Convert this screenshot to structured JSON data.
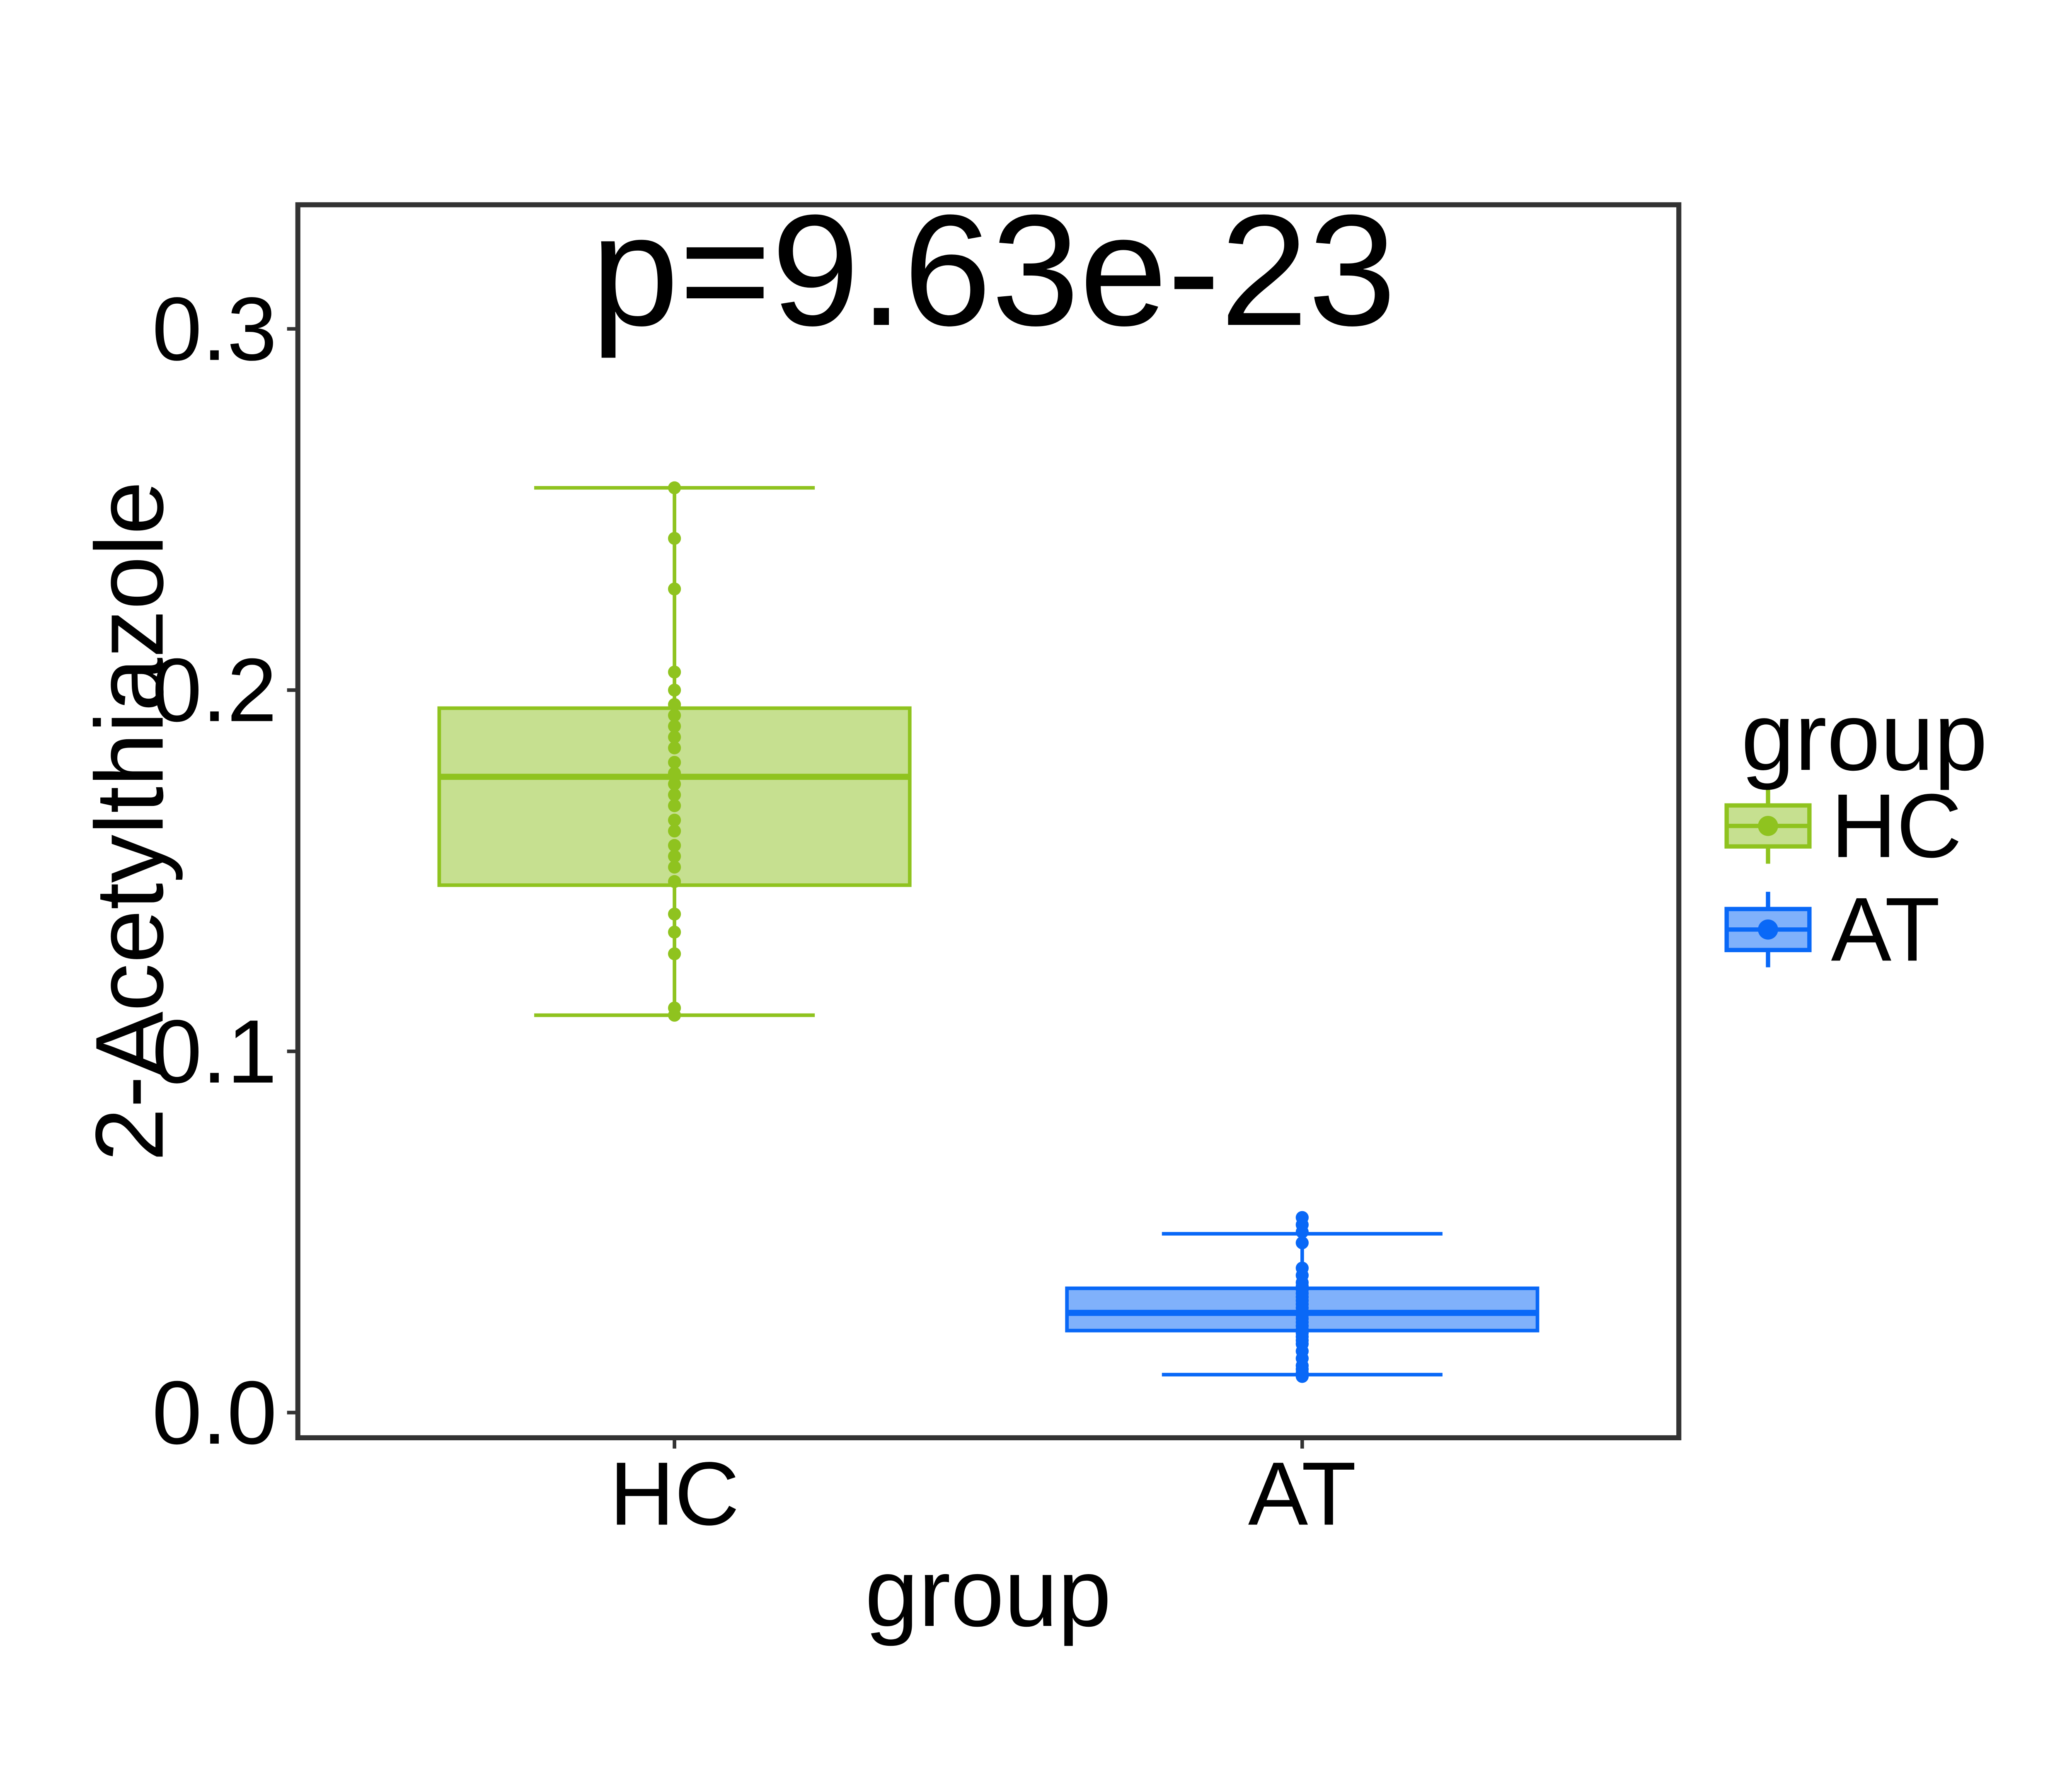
{
  "chart_data": {
    "type": "boxplot",
    "title": "p=9.63e-23",
    "xlabel": "group",
    "ylabel": "2-Acetylthiazole",
    "categories": [
      "HC",
      "AT"
    ],
    "ytick_labels": [
      "0.0",
      "0.1",
      "0.2",
      "0.3"
    ],
    "yticks": [
      0.0,
      0.1,
      0.2,
      0.3
    ],
    "ylim": [
      0.0,
      0.335
    ],
    "grid": "off",
    "legend": {
      "title": "group",
      "position": "right",
      "entries": [
        {
          "label": "HC",
          "stroke": "#8FC31F",
          "fill": "#C6E090"
        },
        {
          "label": "AT",
          "stroke": "#0968F7",
          "fill": "#80B1FB"
        }
      ]
    },
    "series": [
      {
        "name": "HC",
        "stroke": "#8FC31F",
        "fill": "#C6E090",
        "stats": {
          "whisker_low": 0.11,
          "q1": 0.146,
          "median": 0.176,
          "q3": 0.195,
          "whisker_high": 0.256
        },
        "points": [
          0.256,
          0.242,
          0.228,
          0.205,
          0.2,
          0.196,
          0.193,
          0.19,
          0.187,
          0.184,
          0.18,
          0.177,
          0.174,
          0.171,
          0.168,
          0.164,
          0.161,
          0.157,
          0.154,
          0.151,
          0.147,
          0.138,
          0.133,
          0.127,
          0.112,
          0.11
        ]
      },
      {
        "name": "AT",
        "stroke": "#0968F7",
        "fill": "#80B1FB",
        "stats": {
          "whisker_low": 0.0105,
          "q1": 0.0227,
          "median": 0.0276,
          "q3": 0.0344,
          "whisker_high": 0.0495
        },
        "points": [
          0.054,
          0.052,
          0.05,
          0.047,
          0.04,
          0.038,
          0.036,
          0.035,
          0.034,
          0.033,
          0.032,
          0.031,
          0.03,
          0.029,
          0.028,
          0.027,
          0.026,
          0.025,
          0.024,
          0.023,
          0.022,
          0.021,
          0.02,
          0.019,
          0.017,
          0.015,
          0.013,
          0.012,
          0.011,
          0.01
        ]
      }
    ],
    "colors": {
      "panel_border": "#333333",
      "tick_mark": "#333333",
      "text": "#000000",
      "background": "#ffffff"
    }
  }
}
